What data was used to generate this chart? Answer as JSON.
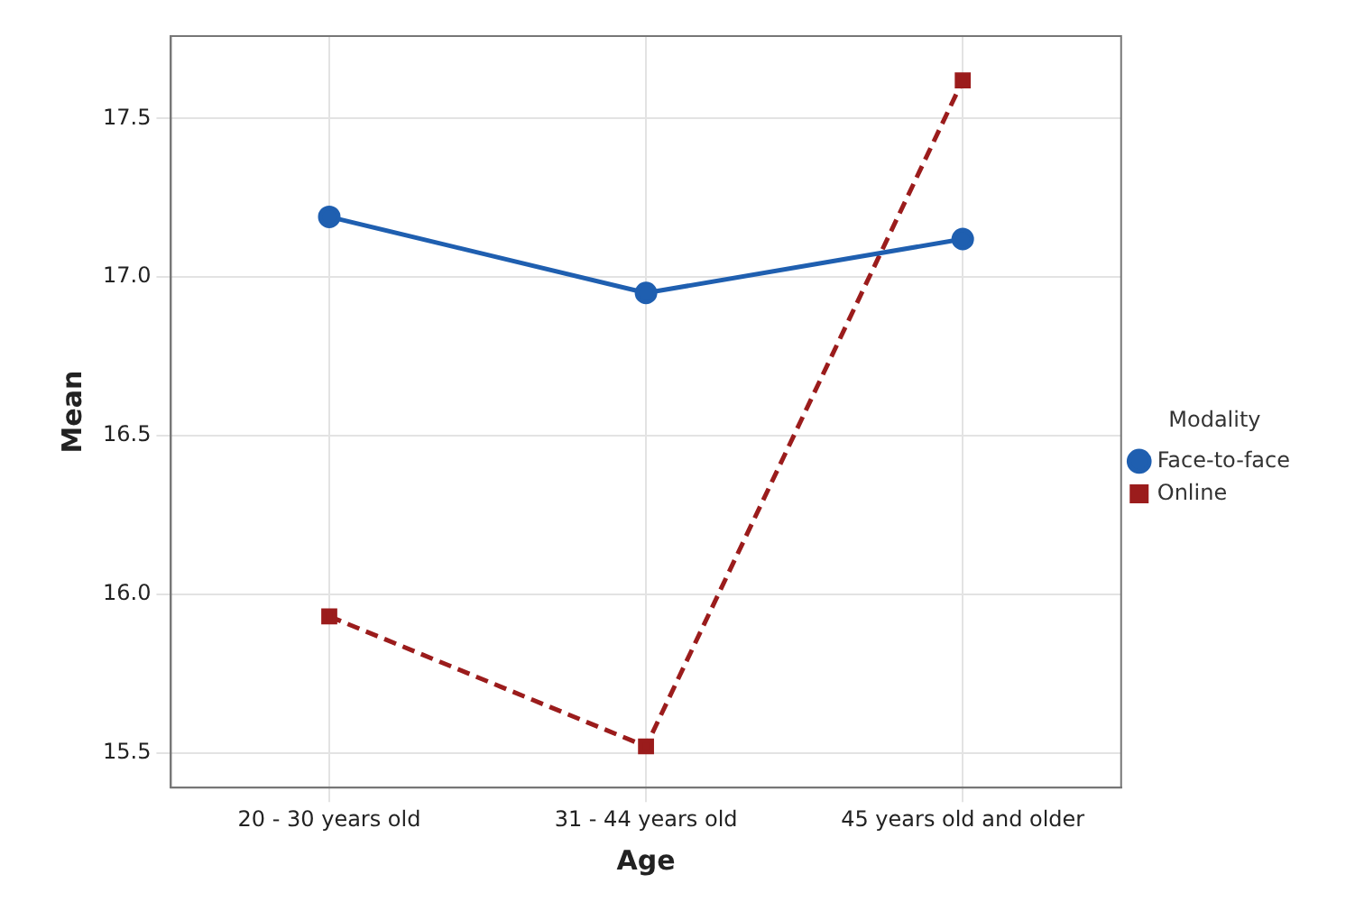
{
  "chart_data": {
    "type": "line",
    "xlabel": "Age",
    "ylabel": "Mean",
    "legend_title": "Modality",
    "categories": [
      "20 - 30 years old",
      "31 - 44 years old",
      "45 years old and older"
    ],
    "series": [
      {
        "name": "Face-to-face",
        "color": "#1f5fb0",
        "values": [
          17.19,
          16.95,
          17.12
        ],
        "marker": "circle",
        "line_style": "solid"
      },
      {
        "name": "Online",
        "color": "#9b1c1c",
        "values": [
          15.93,
          15.52,
          17.62
        ],
        "marker": "square",
        "line_style": "dashed"
      }
    ],
    "ylim": [
      15.39,
      17.76
    ],
    "yticks": [
      {
        "value": 15.5,
        "label": "15.5"
      },
      {
        "value": 16,
        "label": "16.0"
      },
      {
        "value": 16.5,
        "label": "16.5"
      },
      {
        "value": 17,
        "label": "17.0"
      },
      {
        "value": 17.5,
        "label": "17.5"
      }
    ],
    "grid": true,
    "legend": "right"
  }
}
